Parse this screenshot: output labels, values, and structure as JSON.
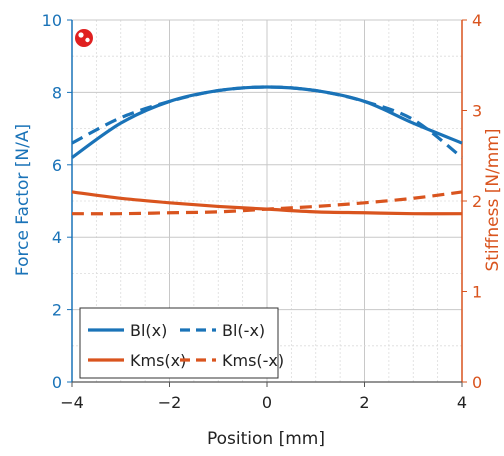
{
  "chart_data": {
    "type": "line",
    "title": "",
    "xlabel": "Position [mm]",
    "ylabel_left": "Force Factor [N/A]",
    "ylabel_right": "Stiffness [N/mm]",
    "xlim": [
      -4,
      4
    ],
    "ylim_left": [
      0,
      10
    ],
    "ylim_right": [
      0,
      4
    ],
    "x_ticks": [
      "−4",
      "−2",
      "0",
      "2",
      "4"
    ],
    "y_left_ticks": [
      "0",
      "2",
      "4",
      "6",
      "8",
      "10"
    ],
    "y_right_ticks": [
      "0",
      "1",
      "2",
      "3",
      "4"
    ],
    "grid": true,
    "legend_position": "bottom-left",
    "colors": {
      "bl": "#1a73b8",
      "kms": "#d9541e",
      "axis_left": "#1a73b8",
      "axis_right": "#d9541e"
    },
    "series": [
      {
        "name": "Bl(x)",
        "axis": "left",
        "style": "solid",
        "color": "#1a73b8",
        "x": [
          -4,
          -3,
          -2,
          -1,
          0,
          1,
          2,
          3,
          4
        ],
        "y": [
          6.2,
          7.15,
          7.75,
          8.05,
          8.15,
          8.05,
          7.75,
          7.15,
          6.6
        ]
      },
      {
        "name": "Bl(-x)",
        "axis": "left",
        "style": "dashed",
        "color": "#1a73b8",
        "x": [
          -4,
          -3,
          -2,
          -1,
          0,
          1,
          2,
          3,
          4
        ],
        "y": [
          6.6,
          7.3,
          7.75,
          8.05,
          8.15,
          8.05,
          7.75,
          7.25,
          6.2
        ]
      },
      {
        "name": "Kms(x)",
        "axis": "right",
        "style": "solid",
        "color": "#d9541e",
        "x": [
          -4,
          -3,
          -2,
          -1,
          0,
          1,
          2,
          3,
          4
        ],
        "y": [
          2.1,
          2.03,
          1.98,
          1.94,
          1.91,
          1.88,
          1.87,
          1.86,
          1.86
        ]
      },
      {
        "name": "Kms(-x)",
        "axis": "right",
        "style": "dashed",
        "color": "#d9541e",
        "x": [
          -4,
          -3,
          -2,
          -1,
          0,
          1,
          2,
          3,
          4
        ],
        "y": [
          1.86,
          1.86,
          1.87,
          1.88,
          1.91,
          1.94,
          1.98,
          2.03,
          2.1
        ]
      }
    ]
  },
  "logo": {
    "name": "logo-icon"
  }
}
